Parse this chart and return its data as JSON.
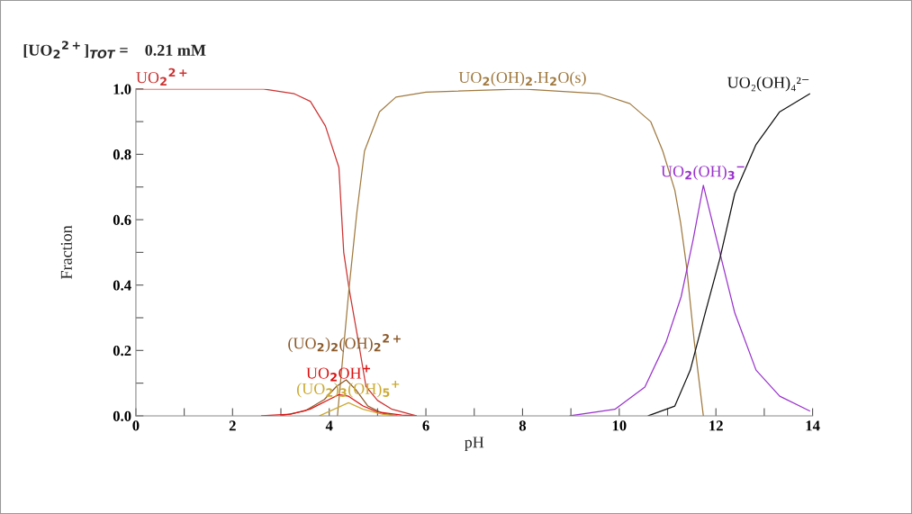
{
  "chart_data": {
    "type": "line",
    "xlabel": "pH",
    "ylabel": "Fraction",
    "annotations": [
      "[UO$_{2}$$^{2+}$]$_{TOT}$ =    0.21 mM"
    ],
    "xlim": [
      0,
      14
    ],
    "ylim": [
      0,
      1.0
    ],
    "xticks": [
      0,
      {
        "value": 1,
        "label": null
      },
      2,
      {
        "value": 3,
        "label": null
      },
      4,
      {
        "value": 5,
        "label": null
      },
      6,
      {
        "value": 7,
        "label": null
      },
      8,
      {
        "value": 9,
        "label": null
      },
      10,
      {
        "value": 11,
        "label": null
      },
      12,
      {
        "value": 13,
        "label": null
      },
      14
    ],
    "yticks": [
      {
        "value": 0,
        "label": "0.0"
      },
      {
        "value": 0.1,
        "label": null
      },
      {
        "value": 0.2,
        "label": "0.2"
      },
      {
        "value": 0.3,
        "label": null
      },
      {
        "value": 0.4,
        "label": "0.4"
      },
      {
        "value": 0.5,
        "label": null
      },
      {
        "value": 0.6,
        "label": "0.6"
      },
      {
        "value": 0.7,
        "label": null
      },
      {
        "value": 0.8,
        "label": "0.8"
      },
      {
        "value": 0.9,
        "label": null
      },
      {
        "value": 1.0,
        "label": "1.0"
      }
    ],
    "grid": false,
    "legend": false,
    "marker": "none",
    "line_style": "solid",
    "series": [
      {
        "name": "UO$_{2}$$^{2+}$",
        "color": "#cc3333",
        "x": [
          0,
          2.64,
          3.28,
          3.61,
          3.92,
          4.2,
          4.3,
          4.41,
          4.6,
          4.76,
          5.0,
          5.3,
          5.8
        ],
        "values": [
          1.0,
          1.0,
          0.985,
          0.962,
          0.887,
          0.76,
          0.5,
          0.39,
          0.23,
          0.09,
          0.047,
          0.02,
          0.0
        ]
      },
      {
        "name": "UO$_{2}$(OH)$_{2}$.H$_{2}$O(s)",
        "color": "#a07a40",
        "x": [
          4.17,
          4.41,
          4.57,
          4.73,
          5.04,
          5.38,
          6.0,
          8.0,
          9.6,
          10.22,
          10.65,
          10.9,
          11.15,
          11.27,
          11.39,
          11.55,
          11.74
        ],
        "values": [
          0.0,
          0.39,
          0.62,
          0.81,
          0.93,
          0.975,
          0.99,
          1.0,
          0.985,
          0.955,
          0.9,
          0.81,
          0.69,
          0.59,
          0.46,
          0.23,
          0.0
        ]
      },
      {
        "name": "(UO$_{2}$)$_{2}$(OH)$_{2}$$^{2+}$",
        "color": "#8b5a2b",
        "x": [
          3.0,
          3.5,
          3.9,
          4.15,
          4.35,
          4.55,
          4.8,
          5.1,
          5.4
        ],
        "values": [
          0.0,
          0.015,
          0.05,
          0.09,
          0.11,
          0.08,
          0.03,
          0.008,
          0.0
        ]
      },
      {
        "name": "UO$_{2}$OH$^{+}$",
        "color": "#dd1111",
        "x": [
          2.6,
          3.2,
          3.6,
          4.0,
          4.2,
          4.4,
          4.7,
          5.0,
          5.5,
          5.8
        ],
        "values": [
          0.0,
          0.005,
          0.02,
          0.05,
          0.065,
          0.06,
          0.03,
          0.012,
          0.002,
          0.0
        ]
      },
      {
        "name": "(UO$_{2}$)$_{3}$(OH)$_{5}$$^{+}$",
        "color": "#ccaa33",
        "x": [
          3.8,
          4.1,
          4.4,
          4.7,
          5.1,
          5.4
        ],
        "values": [
          0.0,
          0.02,
          0.04,
          0.02,
          0.005,
          0.0
        ]
      },
      {
        "name": "UO$_{2}$(OH)$_{3}$$^{−}$",
        "color": "#9933cc",
        "x": [
          8.98,
          9.91,
          10.53,
          10.97,
          11.28,
          11.53,
          11.74,
          12.08,
          12.39,
          12.83,
          13.32,
          13.94
        ],
        "values": [
          0.0,
          0.02,
          0.088,
          0.226,
          0.364,
          0.54,
          0.705,
          0.5,
          0.315,
          0.14,
          0.06,
          0.015
        ]
      },
      {
        "name": "UO₂(OH)₄²⁻",
        "color": "#111111",
        "x": [
          10.6,
          11.15,
          11.47,
          11.77,
          12.08,
          12.39,
          12.83,
          13.32,
          13.94
        ],
        "values": [
          0.0,
          0.03,
          0.14,
          0.31,
          0.48,
          0.68,
          0.83,
          0.93,
          0.985
        ]
      }
    ]
  }
}
